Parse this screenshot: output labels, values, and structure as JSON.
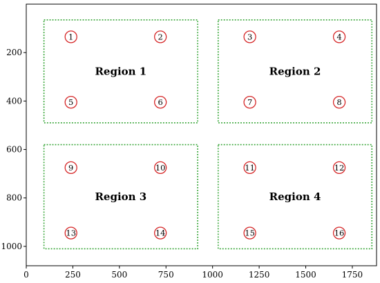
{
  "chart_data": {
    "type": "scatter",
    "title": "",
    "xlabel": "",
    "ylabel": "",
    "xlim": [
      0,
      1880
    ],
    "ylim": [
      1080,
      0
    ],
    "y_axis_inverted": true,
    "grid": false,
    "x_ticks": [
      0,
      250,
      500,
      750,
      1000,
      1250,
      1500,
      1750
    ],
    "y_ticks": [
      200,
      400,
      600,
      800,
      1000
    ],
    "region_color": "#2ca02c",
    "marker_color": "#d62728",
    "regions": [
      {
        "label": "Region 1",
        "x0": 95,
        "y0": 65,
        "x1": 920,
        "y1": 490
      },
      {
        "label": "Region 2",
        "x0": 1030,
        "y0": 65,
        "x1": 1855,
        "y1": 490
      },
      {
        "label": "Region 3",
        "x0": 95,
        "y0": 580,
        "x1": 920,
        "y1": 1010
      },
      {
        "label": "Region 4",
        "x0": 1030,
        "y0": 580,
        "x1": 1855,
        "y1": 1010
      }
    ],
    "points": [
      {
        "label": "1",
        "x": 240,
        "y": 135
      },
      {
        "label": "2",
        "x": 720,
        "y": 135
      },
      {
        "label": "3",
        "x": 1200,
        "y": 135
      },
      {
        "label": "4",
        "x": 1680,
        "y": 135
      },
      {
        "label": "5",
        "x": 240,
        "y": 405
      },
      {
        "label": "6",
        "x": 720,
        "y": 405
      },
      {
        "label": "7",
        "x": 1200,
        "y": 405
      },
      {
        "label": "8",
        "x": 1680,
        "y": 405
      },
      {
        "label": "9",
        "x": 240,
        "y": 675
      },
      {
        "label": "10",
        "x": 720,
        "y": 675
      },
      {
        "label": "11",
        "x": 1200,
        "y": 675
      },
      {
        "label": "12",
        "x": 1680,
        "y": 675
      },
      {
        "label": "13",
        "x": 240,
        "y": 945
      },
      {
        "label": "14",
        "x": 720,
        "y": 945
      },
      {
        "label": "15",
        "x": 1200,
        "y": 945
      },
      {
        "label": "16",
        "x": 1680,
        "y": 945
      }
    ]
  }
}
